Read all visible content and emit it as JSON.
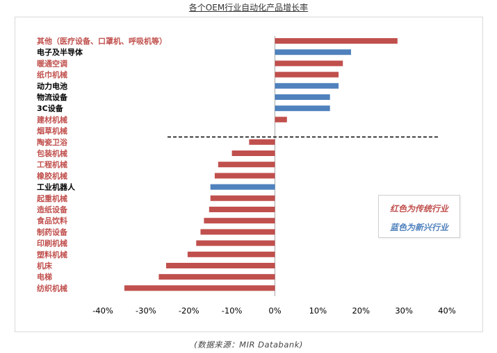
{
  "title": "各个OEM行业自动化产品增长率",
  "source": "(数据来源：MIR Databank)",
  "legend": {
    "red_label": "红色为传统行业",
    "blue_label": "蓝色为新兴行业"
  },
  "colors": {
    "traditional": "#c0504d",
    "emerging": "#4f81bd",
    "divider": "#000000"
  },
  "chart_data": {
    "type": "bar",
    "orientation": "horizontal",
    "xlim": [
      -40,
      40
    ],
    "xticks": [
      "-40%",
      "-30%",
      "-20%",
      "-10%",
      "0%",
      "10%",
      "20%",
      "30%",
      "40%"
    ],
    "xtick_values": [
      -40,
      -30,
      -20,
      -10,
      0,
      10,
      20,
      30,
      40
    ],
    "grid": false,
    "legend_placement": "bottom-right",
    "divider_line": "dashed horizontal line between 烟草机械 and 陶瓷卫浴",
    "bars": [
      {
        "label": "其他（医疗设备、口罩机、呼吸机等）",
        "value": 28.5,
        "group": "traditional"
      },
      {
        "label": "电子及半导体",
        "value": 17.7,
        "group": "emerging"
      },
      {
        "label": "暖通空调",
        "value": 15.8,
        "group": "traditional"
      },
      {
        "label": "纸巾机械",
        "value": 14.8,
        "group": "traditional"
      },
      {
        "label": "动力电池",
        "value": 14.8,
        "group": "emerging"
      },
      {
        "label": "物流设备",
        "value": 12.8,
        "group": "emerging"
      },
      {
        "label": "3C设备",
        "value": 12.8,
        "group": "emerging"
      },
      {
        "label": "建材机械",
        "value": 2.8,
        "group": "traditional"
      },
      {
        "label": "烟草机械",
        "value": 0,
        "group": "traditional"
      },
      {
        "label": "陶瓷卫浴",
        "value": -6.0,
        "group": "traditional"
      },
      {
        "label": "包装机械",
        "value": -10.0,
        "group": "traditional"
      },
      {
        "label": "工程机械",
        "value": -13.2,
        "group": "traditional"
      },
      {
        "label": "橡胶机械",
        "value": -14.0,
        "group": "traditional"
      },
      {
        "label": "工业机器人",
        "value": -15.0,
        "group": "emerging"
      },
      {
        "label": "起重机械",
        "value": -15.0,
        "group": "traditional"
      },
      {
        "label": "造纸设备",
        "value": -15.3,
        "group": "traditional"
      },
      {
        "label": "食品饮料",
        "value": -16.5,
        "group": "traditional"
      },
      {
        "label": "制药设备",
        "value": -17.3,
        "group": "traditional"
      },
      {
        "label": "印刷机械",
        "value": -18.3,
        "group": "traditional"
      },
      {
        "label": "塑料机械",
        "value": -20.3,
        "group": "traditional"
      },
      {
        "label": "机床",
        "value": -25.3,
        "group": "traditional"
      },
      {
        "label": "电梯",
        "value": -27.0,
        "group": "traditional"
      },
      {
        "label": "纺织机械",
        "value": -35.0,
        "group": "traditional"
      }
    ]
  }
}
